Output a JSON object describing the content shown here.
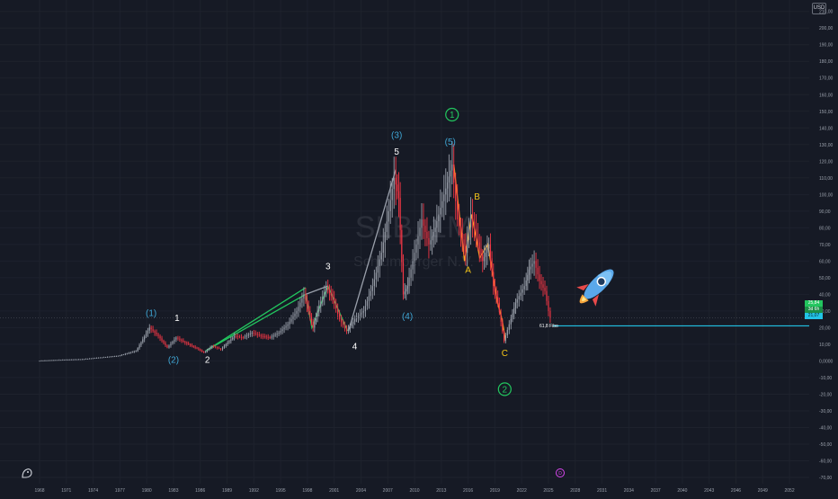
{
  "watermark": {
    "ticker": "SLB, 1M",
    "company": "Schlumberger N.V."
  },
  "currency": "USD",
  "price_tags": {
    "last": "25,84",
    "countdown": "3d 6h",
    "level": "21,07"
  },
  "fibo_label": "61,8 Fibo",
  "icons": {
    "logo": "tradingview-logo-icon",
    "rocket": "rocket-emoji",
    "event": "dividend-marker-icon"
  },
  "colors": {
    "background": "#161a25",
    "candle_up": "#9aa0ab",
    "candle_down": "#f23645",
    "impulse_line": "#22c55e",
    "correction_line": "#f5a623",
    "fibo_line": "#22c4e6",
    "wave_blue": "#3fa7d6",
    "wave_white": "#ffffff",
    "wave_yellow": "#f5c518",
    "wave_green": "#22c55e"
  },
  "chart_data": {
    "type": "line",
    "title": "SLB, 1M",
    "subtitle": "Schlumberger N.V.",
    "x_tick_labels": [
      "1968",
      "1971",
      "1974",
      "1977",
      "1980",
      "1983",
      "1986",
      "1989",
      "1992",
      "1995",
      "1998",
      "2001",
      "2004",
      "2007",
      "2010",
      "2013",
      "2016",
      "2019",
      "2022",
      "2025",
      "2028",
      "2031",
      "2034",
      "2037",
      "2040",
      "2043",
      "2046",
      "2049",
      "2052"
    ],
    "y_tick_labels": [
      "210,00",
      "200,00",
      "190,00",
      "180,00",
      "170,00",
      "160,00",
      "150,00",
      "140,00",
      "130,00",
      "120,00",
      "110,00",
      "100,00",
      "90,00",
      "80,00",
      "70,00",
      "60,00",
      "50,00",
      "40,00",
      "30,00",
      "20,00",
      "10,00",
      "0,0000",
      "-10,00",
      "-20,00",
      "-30,00",
      "-40,00",
      "-50,00",
      "-60,00",
      "-70,00"
    ],
    "ylim": [
      -70,
      212
    ],
    "xlim": [
      1968,
      2053
    ],
    "grid": true,
    "series": [
      {
        "values": [
          [
            1968,
            0
          ],
          [
            1970,
            0.5
          ],
          [
            1973,
            1
          ],
          [
            1975,
            2
          ],
          [
            1977,
            3
          ],
          [
            1979,
            6
          ],
          [
            1980.5,
            20
          ],
          [
            1981.5,
            15
          ],
          [
            1982.5,
            8
          ],
          [
            1983.5,
            14
          ],
          [
            1984.5,
            11
          ],
          [
            1986,
            7
          ],
          [
            1986.6,
            5
          ],
          [
            1987.5,
            9
          ],
          [
            1988.5,
            7
          ],
          [
            1990,
            15
          ],
          [
            1991,
            14
          ],
          [
            1992,
            17
          ],
          [
            1993,
            15
          ],
          [
            1994,
            14
          ],
          [
            1995,
            17
          ],
          [
            1996,
            22
          ],
          [
            1997,
            30
          ],
          [
            1997.8,
            40
          ],
          [
            1998.3,
            30
          ],
          [
            1998.8,
            20
          ],
          [
            1999.3,
            30
          ],
          [
            2000.3,
            44
          ],
          [
            2001,
            38
          ],
          [
            2001.8,
            25
          ],
          [
            2002.6,
            18
          ],
          [
            2003.5,
            25
          ],
          [
            2004.5,
            30
          ],
          [
            2005.5,
            45
          ],
          [
            2006.5,
            65
          ],
          [
            2007.3,
            90
          ],
          [
            2007.9,
            110
          ],
          [
            2008.4,
            98
          ],
          [
            2008.9,
            40
          ],
          [
            2009.4,
            45
          ],
          [
            2010,
            60
          ],
          [
            2011,
            85
          ],
          [
            2011.8,
            70
          ],
          [
            2012.5,
            80
          ],
          [
            2013.5,
            100
          ],
          [
            2014.4,
            118
          ],
          [
            2015,
            85
          ],
          [
            2015.9,
            65
          ],
          [
            2016.5,
            88
          ],
          [
            2017.1,
            75
          ],
          [
            2017.8,
            60
          ],
          [
            2018.5,
            70
          ],
          [
            2019,
            45
          ],
          [
            2019.5,
            35
          ],
          [
            2020.2,
            12
          ],
          [
            2020.8,
            22
          ],
          [
            2021.5,
            35
          ],
          [
            2022.5,
            45
          ],
          [
            2023,
            55
          ],
          [
            2023.6,
            60
          ],
          [
            2024.2,
            48
          ],
          [
            2024.8,
            42
          ],
          [
            2025.2,
            30
          ],
          [
            2025.5,
            25.84
          ]
        ]
      }
    ],
    "price_line": {
      "value": 25.84
    },
    "fibo_level": {
      "value": 21.07,
      "label": "61,8 Fibo"
    },
    "trendlines": [
      {
        "color": "#22c55e",
        "points": [
          [
            1986.6,
            6
          ],
          [
            1997.8,
            44
          ]
        ]
      },
      {
        "color": "#22c55e",
        "points": [
          [
            1986.6,
            6
          ],
          [
            1997.8,
            40
          ],
          [
            1998.5,
            20
          ],
          [
            2000.3,
            45
          ],
          [
            2002.5,
            18
          ]
        ]
      },
      {
        "color": "#9aa0ab",
        "points": [
          [
            2002.6,
            18
          ],
          [
            2007.9,
            115
          ]
        ]
      },
      {
        "color": "#9aa0ab",
        "points": [
          [
            1997.8,
            40
          ],
          [
            2000.3,
            45
          ]
        ]
      },
      {
        "color": "#f5a623",
        "points": [
          [
            2014.4,
            118
          ],
          [
            2015.6,
            60
          ],
          [
            2016.4,
            88
          ],
          [
            2017.3,
            62
          ],
          [
            2018.2,
            70
          ],
          [
            2019.3,
            35
          ],
          [
            2019.8,
            25
          ],
          [
            2020.2,
            12
          ]
        ]
      }
    ],
    "annotations": [
      {
        "text": "(1)",
        "x": 1980.5,
        "y": 27,
        "color": "#3fa7d6"
      },
      {
        "text": "1",
        "x": 1983.4,
        "y": 24,
        "color": "#ffffff"
      },
      {
        "text": "(2)",
        "x": 1983.0,
        "y": -1,
        "color": "#3fa7d6"
      },
      {
        "text": "2",
        "x": 1986.8,
        "y": -1,
        "color": "#ffffff"
      },
      {
        "text": "3",
        "x": 2000.3,
        "y": 55,
        "color": "#ffffff"
      },
      {
        "text": "4",
        "x": 2003.3,
        "y": 7,
        "color": "#ffffff"
      },
      {
        "text": "(3)",
        "x": 2008.0,
        "y": 134,
        "color": "#3fa7d6"
      },
      {
        "text": "5",
        "x": 2008.0,
        "y": 124,
        "color": "#ffffff"
      },
      {
        "text": "(4)",
        "x": 2009.2,
        "y": 25,
        "color": "#3fa7d6"
      },
      {
        "text": "(5)",
        "x": 2014.0,
        "y": 130,
        "color": "#3fa7d6"
      },
      {
        "text": "B",
        "x": 2017.0,
        "y": 97,
        "color": "#f5c518"
      },
      {
        "text": "A",
        "x": 2016.0,
        "y": 53,
        "color": "#f5c518"
      },
      {
        "text": "C",
        "x": 2020.1,
        "y": 3,
        "color": "#f5c518"
      }
    ],
    "circled_annotations": [
      {
        "text": "1",
        "x": 2014.2,
        "y": 148,
        "color": "#22c55e"
      },
      {
        "text": "2",
        "x": 2020.1,
        "y": -17,
        "color": "#22c55e"
      }
    ],
    "price_markers": [
      {
        "value": 25.84,
        "color": "#22c55e"
      },
      {
        "value": 21.07,
        "color": "#22c4e6"
      }
    ]
  }
}
